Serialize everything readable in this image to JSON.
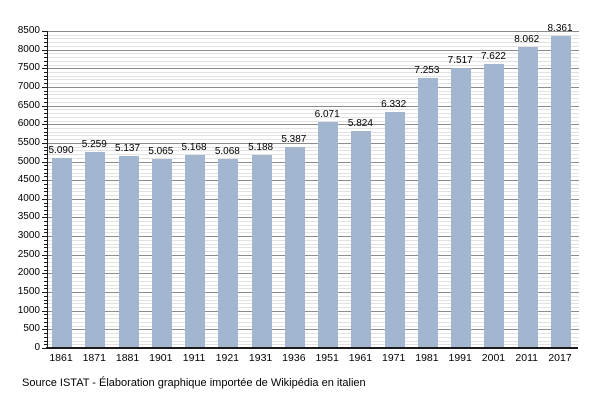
{
  "chart_data": {
    "type": "bar",
    "title": "",
    "xlabel": "",
    "ylabel": "",
    "categories": [
      "1861",
      "1871",
      "1881",
      "1901",
      "1911",
      "1921",
      "1931",
      "1936",
      "1951",
      "1961",
      "1971",
      "1981",
      "1991",
      "2001",
      "2011",
      "2017"
    ],
    "values": [
      5090,
      5259,
      5137,
      5065,
      5168,
      5068,
      5188,
      5387,
      6071,
      5824,
      6332,
      7253,
      7517,
      7622,
      8062,
      8361
    ],
    "value_labels": [
      "5.090",
      "5.259",
      "5.137",
      "5.065",
      "5.168",
      "5.068",
      "5.188",
      "5.387",
      "6.071",
      "5.824",
      "6.332",
      "7.253",
      "7.517",
      "7.622",
      "8.062",
      "8.361"
    ],
    "ylim": [
      0,
      8500
    ],
    "y_major_step": 500,
    "y_minor_step": 100,
    "y_tick_labels": [
      "0",
      "500",
      "1000",
      "1500",
      "2000",
      "2500",
      "3000",
      "3500",
      "4000",
      "4500",
      "5000",
      "5500",
      "6000",
      "6500",
      "7000",
      "7500",
      "8000",
      "8500"
    ],
    "grid": "on",
    "legend": "none",
    "bar_color": "#a3b6cf",
    "major_grid_color": "#8c8c8c",
    "minor_grid_color": "#e2e2e2",
    "axis_color": "#1a1a1a"
  },
  "footer": {
    "source_text": "Source ISTAT - Élaboration graphique importée de Wikipédia en italien"
  }
}
